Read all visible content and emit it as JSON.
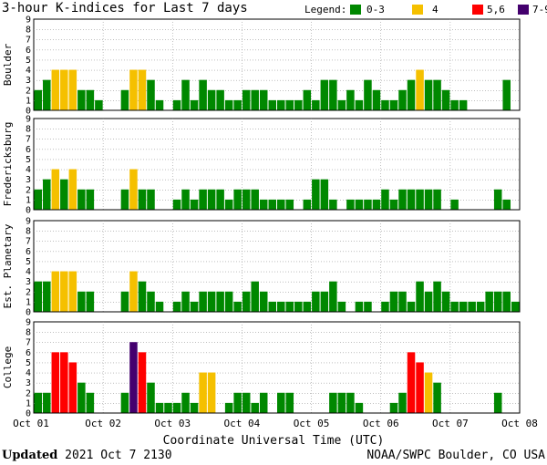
{
  "title": "3-hour K-indices for Last 7 days",
  "legend": {
    "label": "Legend:",
    "items": [
      {
        "text": "0-3",
        "color": "#008800"
      },
      {
        "text": "4",
        "color": "#f5c000"
      },
      {
        "text": "5,6",
        "color": "#ff0000"
      },
      {
        "text": "7-9",
        "color": "#44006e"
      }
    ]
  },
  "footer": {
    "updated_label": "Updated",
    "updated_value": "2021 Oct  7 2130",
    "source": "NOAA/SWPC Boulder, CO USA"
  },
  "chart_data": {
    "type": "bar",
    "xlabel": "Coordinate Universal Time (UTC)",
    "x_ticks": [
      "Oct 01",
      "Oct 02",
      "Oct 03",
      "Oct 04",
      "Oct 05",
      "Oct 06",
      "Oct 07",
      "Oct 08"
    ],
    "ylim": [
      0,
      9
    ],
    "y_ticks": [
      0,
      1,
      2,
      3,
      4,
      5,
      6,
      7,
      8,
      9
    ],
    "grid": true,
    "bins_per_day": 8,
    "series": [
      {
        "name": "Boulder",
        "values": [
          2,
          3,
          4,
          4,
          4,
          2,
          2,
          1,
          0,
          0,
          2,
          4,
          4,
          3,
          1,
          0,
          1,
          3,
          1,
          3,
          2,
          2,
          1,
          1,
          2,
          2,
          2,
          1,
          1,
          1,
          1,
          2,
          1,
          3,
          3,
          1,
          2,
          1,
          3,
          2,
          1,
          1,
          2,
          3,
          4,
          3,
          3,
          2,
          1,
          1,
          0,
          0,
          0,
          0,
          3,
          0
        ]
      },
      {
        "name": "Fredericksburg",
        "values": [
          2,
          3,
          4,
          3,
          4,
          2,
          2,
          0,
          0,
          0,
          2,
          4,
          2,
          2,
          0,
          0,
          1,
          2,
          1,
          2,
          2,
          2,
          1,
          2,
          2,
          2,
          1,
          1,
          1,
          1,
          0,
          1,
          3,
          3,
          1,
          0,
          1,
          1,
          1,
          1,
          2,
          1,
          2,
          2,
          2,
          2,
          2,
          0,
          1,
          0,
          0,
          0,
          0,
          2,
          1,
          0
        ]
      },
      {
        "name": "Est. Planetary",
        "values": [
          3,
          3,
          4,
          4,
          4,
          2,
          2,
          0,
          0,
          0,
          2,
          4,
          3,
          2,
          1,
          0,
          1,
          2,
          1,
          2,
          2,
          2,
          2,
          1,
          2,
          3,
          2,
          1,
          1,
          1,
          1,
          1,
          2,
          2,
          3,
          1,
          0,
          1,
          1,
          0,
          1,
          2,
          2,
          1,
          3,
          2,
          3,
          2,
          1,
          1,
          1,
          1,
          2,
          2,
          2,
          1
        ]
      },
      {
        "name": "College",
        "values": [
          2,
          2,
          6,
          6,
          5,
          3,
          2,
          0,
          0,
          0,
          2,
          7,
          6,
          3,
          1,
          1,
          1,
          2,
          1,
          4,
          4,
          0,
          1,
          2,
          2,
          1,
          2,
          0,
          2,
          2,
          0,
          0,
          0,
          0,
          2,
          2,
          2,
          1,
          0,
          0,
          0,
          1,
          2,
          6,
          5,
          4,
          3,
          0,
          0,
          0,
          0,
          0,
          0,
          2,
          0,
          0
        ]
      }
    ]
  }
}
